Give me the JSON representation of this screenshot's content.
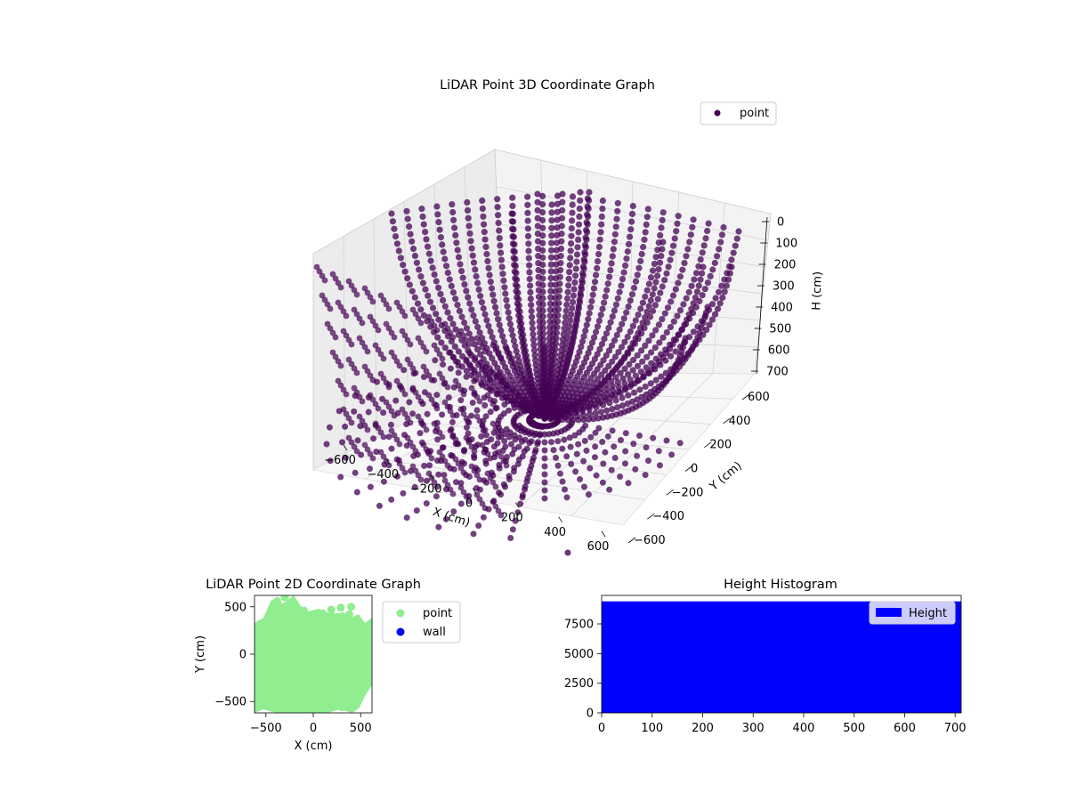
{
  "colors": {
    "point3d": "#440154",
    "point2d": "#90ee90",
    "wall": "#0000ff",
    "histogram": "#0000ff",
    "pane": "#f2f2f2",
    "grid": "#d0d0d0"
  },
  "chart_data": [
    {
      "type": "scatter",
      "title": "LiDAR Point 3D Coordinate Graph",
      "xlabel": "X (cm)",
      "ylabel": "Y (cm)",
      "zlabel": "H (cm)",
      "x_ticks": [
        "−600",
        "−400",
        "−200",
        "0",
        "200",
        "400",
        "600"
      ],
      "y_ticks": [
        "−600",
        "−400",
        "−200",
        "0",
        "200",
        "400",
        "600"
      ],
      "z_ticks": [
        "0",
        "100",
        "200",
        "300",
        "400",
        "500",
        "600",
        "700"
      ],
      "xlim": [
        -600,
        600
      ],
      "ylim": [
        -600,
        600
      ],
      "zlim": [
        0,
        700
      ],
      "z_inverted": true,
      "grid": true,
      "legend": {
        "position": "top-right",
        "entries": [
          "point"
        ]
      },
      "series": [
        {
          "name": "point"
        }
      ]
    },
    {
      "type": "scatter",
      "title": "LiDAR Point 2D Coordinate Graph",
      "xlabel": "X (cm)",
      "ylabel": "Y (cm)",
      "x_ticks": [
        "−500",
        "0",
        "500"
      ],
      "y_ticks": [
        "500",
        "0",
        "−500"
      ],
      "xlim": [
        -620,
        620
      ],
      "ylim": [
        -620,
        620
      ],
      "legend": {
        "position": "outside-right",
        "entries": [
          "point",
          "wall"
        ]
      },
      "series": [
        {
          "name": "point",
          "x": [
            -440,
            -380,
            -300,
            -200,
            -100,
            0,
            100,
            200,
            300,
            380,
            440,
            500,
            560,
            500,
            440,
            300,
            100,
            -100,
            -300,
            -480,
            -560,
            -520,
            190,
            290,
            400
          ],
          "y": [
            480,
            560,
            600,
            520,
            460,
            420,
            430,
            400,
            380,
            420,
            360,
            240,
            0,
            -240,
            -420,
            -560,
            -560,
            -560,
            -560,
            -480,
            0,
            300,
            470,
            490,
            500
          ]
        },
        {
          "name": "wall",
          "x": [],
          "y": []
        }
      ]
    },
    {
      "type": "bar",
      "title": "Height Histogram",
      "xlabel": "",
      "ylabel": "",
      "x_ticks": [
        "0",
        "100",
        "200",
        "300",
        "400",
        "500",
        "600",
        "700"
      ],
      "y_ticks": [
        "0",
        "2500",
        "5000",
        "7500"
      ],
      "xlim": [
        0,
        712
      ],
      "ylim": [
        0,
        9900
      ],
      "legend": {
        "position": "top-right",
        "entries": [
          "Height"
        ]
      },
      "series": [
        {
          "name": "Height",
          "bins": [
            [
              0,
              712,
              9400
            ]
          ]
        }
      ]
    }
  ]
}
